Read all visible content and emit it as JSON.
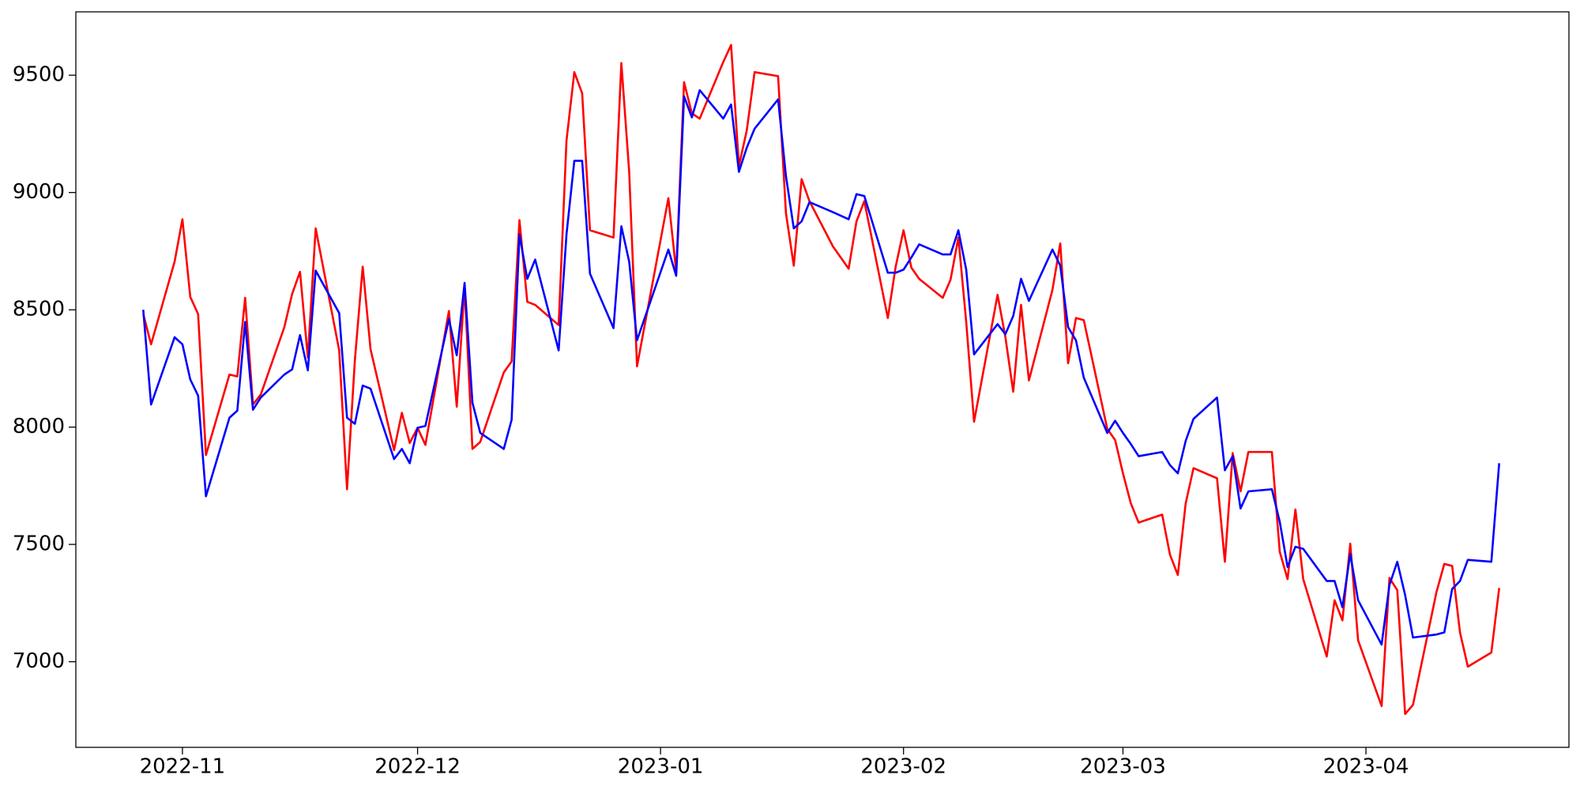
{
  "chart_data": {
    "type": "line",
    "x": [
      19292,
      19293,
      19296,
      19297,
      19298,
      19299,
      19300,
      19303,
      19304,
      19305,
      19306,
      19307,
      19310,
      19311,
      19312,
      19313,
      19314,
      19317,
      19318,
      19319,
      19320,
      19321,
      19324,
      19325,
      19326,
      19327,
      19328,
      19331,
      19332,
      19333,
      19334,
      19335,
      19338,
      19339,
      19340,
      19341,
      19342,
      19345,
      19346,
      19347,
      19348,
      19349,
      19352,
      19353,
      19354,
      19355,
      19359,
      19360,
      19361,
      19362,
      19363,
      19366,
      19367,
      19368,
      19369,
      19370,
      19373,
      19374,
      19375,
      19376,
      19377,
      19380,
      19382,
      19383,
      19384,
      19387,
      19388,
      19389,
      19390,
      19391,
      19394,
      19395,
      19396,
      19397,
      19398,
      19401,
      19402,
      19403,
      19404,
      19405,
      19408,
      19409,
      19410,
      19411,
      19412,
      19415,
      19416,
      19417,
      19418,
      19419,
      19422,
      19423,
      19424,
      19425,
      19426,
      19429,
      19430,
      19431,
      19432,
      19433,
      19436,
      19437,
      19438,
      19439,
      19440,
      19443,
      19444,
      19445,
      19446,
      19447,
      19450,
      19451,
      19452,
      19453,
      19454,
      19457,
      19458,
      19459,
      19460,
      19461,
      19464,
      19465
    ],
    "series": [
      {
        "color": "#ff0000",
        "values": [
          8482,
          8353,
          8705,
          8886,
          8555,
          8482,
          7881,
          8224,
          8216,
          8551,
          8096,
          8139,
          8426,
          8568,
          8662,
          8297,
          8847,
          8327,
          7735,
          8285,
          8684,
          8332,
          7902,
          8061,
          7932,
          7997,
          7924,
          8495,
          8087,
          8598,
          7907,
          7937,
          8233,
          8280,
          8882,
          8534,
          8521,
          8435,
          9221,
          9513,
          9423,
          8839,
          8808,
          9552,
          9088,
          8259,
          8976,
          8662,
          9470,
          9337,
          9315,
          9556,
          9629,
          9113,
          9264,
          9513,
          9496,
          8912,
          8688,
          9057,
          8963,
          8770,
          8675,
          8877,
          8963,
          8465,
          8684,
          8839,
          8680,
          8632,
          8551,
          8628,
          8808,
          8448,
          8023,
          8564,
          8383,
          8151,
          8521,
          8199,
          8585,
          8783,
          8272,
          8465,
          8456,
          7992,
          7945,
          7803,
          7675,
          7593,
          7627,
          7456,
          7370,
          7675,
          7825,
          7782,
          7426,
          7889,
          7726,
          7894,
          7894,
          7469,
          7352,
          7649,
          7352,
          7022,
          7262,
          7176,
          7503,
          7091,
          6811,
          7357,
          7305,
          6777,
          6816,
          7297,
          7417,
          7408,
          7125,
          6979,
          7039,
          7314
        ]
      },
      {
        "color": "#0000ff",
        "values": [
          8500,
          8096,
          8383,
          8353,
          8203,
          8134,
          7705,
          8040,
          8070,
          8448,
          8074,
          8126,
          8224,
          8246,
          8392,
          8242,
          8667,
          8486,
          8040,
          8014,
          8177,
          8164,
          7864,
          7907,
          7846,
          7997,
          8005,
          8461,
          8306,
          8615,
          8104,
          7975,
          7907,
          8031,
          8821,
          8632,
          8714,
          8327,
          8821,
          9135,
          9135,
          8654,
          8422,
          8856,
          8705,
          8370,
          8757,
          8645,
          9410,
          9320,
          9436,
          9315,
          9375,
          9088,
          9191,
          9272,
          9397,
          9070,
          8847,
          8877,
          8959,
          8916,
          8886,
          8993,
          8985,
          8658,
          8658,
          8671,
          8723,
          8779,
          8736,
          8736,
          8839,
          8671,
          8310,
          8439,
          8396,
          8474,
          8632,
          8538,
          8757,
          8688,
          8426,
          8370,
          8211,
          7975,
          8027,
          7975,
          7928,
          7876,
          7894,
          7838,
          7803,
          7941,
          8035,
          8126,
          7816,
          7876,
          7653,
          7726,
          7735,
          7597,
          7404,
          7490,
          7481,
          7344,
          7344,
          7232,
          7460,
          7262,
          7073,
          7327,
          7426,
          7284,
          7103,
          7116,
          7125,
          7310,
          7344,
          7434,
          7426,
          7846
        ]
      }
    ],
    "xlim": [
      19283.4,
      19473.9
    ],
    "xticks": [
      {
        "value": 19297,
        "label": "2022-11"
      },
      {
        "value": 19327,
        "label": "2022-12"
      },
      {
        "value": 19358,
        "label": "2023-01"
      },
      {
        "value": 19389,
        "label": "2023-02"
      },
      {
        "value": 19417,
        "label": "2023-03"
      },
      {
        "value": 19448,
        "label": "2023-04"
      }
    ],
    "ylim": [
      6635,
      9770
    ],
    "yticks": [
      7000,
      7500,
      8000,
      8500,
      9000,
      9500
    ]
  }
}
